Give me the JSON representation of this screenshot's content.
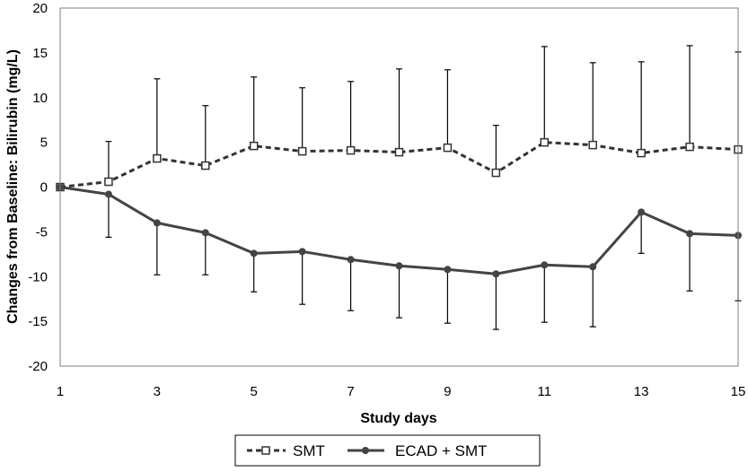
{
  "chart_data": {
    "type": "line",
    "title": "",
    "xlabel": "Study days",
    "ylabel": "Changes from Baseline: Bilirubin (mg/L)",
    "xlim": [
      1,
      15
    ],
    "ylim": [
      -20,
      20
    ],
    "x_ticks": [
      1,
      3,
      5,
      7,
      9,
      11,
      13,
      15
    ],
    "y_ticks": [
      20,
      15,
      10,
      5,
      0,
      -5,
      -10,
      -15,
      -20
    ],
    "grid": false,
    "legend_position": "bottom",
    "x": [
      1,
      2,
      3,
      4,
      5,
      6,
      7,
      8,
      9,
      10,
      11,
      12,
      13,
      14,
      15
    ],
    "series": [
      {
        "name": "SMT",
        "line_style": "dashed",
        "marker": "open-square",
        "color": "#333333",
        "values": [
          0,
          0.6,
          3.2,
          2.4,
          4.6,
          4.0,
          4.1,
          3.9,
          4.4,
          1.6,
          5.0,
          4.7,
          3.8,
          4.5,
          4.2
        ],
        "error_upper": [
          0,
          5.1,
          12.1,
          9.1,
          12.3,
          11.1,
          11.8,
          13.2,
          13.1,
          6.9,
          15.7,
          13.9,
          14.0,
          15.8,
          15.1
        ]
      },
      {
        "name": "ECAD + SMT",
        "line_style": "solid",
        "marker": "filled-circle",
        "color": "#444444",
        "values": [
          0,
          -0.8,
          -4.0,
          -5.1,
          -7.4,
          -7.2,
          -8.1,
          -8.8,
          -9.2,
          -9.7,
          -8.7,
          -8.9,
          -2.8,
          -5.2,
          -5.4
        ],
        "error_lower": [
          0,
          -5.6,
          -9.8,
          -9.8,
          -11.7,
          -13.1,
          -13.8,
          -14.6,
          -15.2,
          -15.9,
          -15.1,
          -15.6,
          -7.4,
          -11.6,
          -12.7
        ]
      }
    ]
  }
}
